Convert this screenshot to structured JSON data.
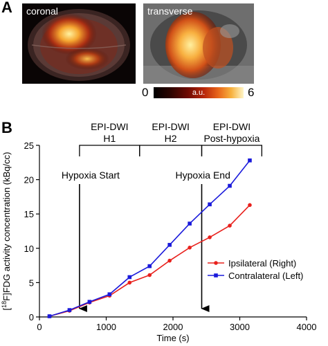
{
  "panel_a": {
    "letter": "A",
    "coronal_label": "coronal",
    "transverse_label": "transverse",
    "colorbar": {
      "min": "0",
      "max": "6",
      "unit": "a.u."
    }
  },
  "panel_b": {
    "letter": "B"
  },
  "chart_data": {
    "type": "line",
    "xlabel": "Time (s)",
    "ylabel_prefix": "[",
    "ylabel_superscript": "18",
    "ylabel_rest": "F]FDG activity concentration (kBq/cc)",
    "xlim": [
      0,
      4000
    ],
    "ylim": [
      0,
      25
    ],
    "xticks": [
      0,
      1000,
      2000,
      3000,
      4000
    ],
    "yticks": [
      0,
      5,
      10,
      15,
      20,
      25
    ],
    "series": [
      {
        "name": "Ipsilateral (Right)",
        "color": "#e8201c",
        "marker": "circle",
        "x": [
          150,
          450,
          750,
          1050,
          1350,
          1650,
          1950,
          2250,
          2550,
          2850,
          3150
        ],
        "y": [
          0.1,
          0.9,
          2.1,
          3.1,
          5.0,
          6.1,
          8.2,
          10.1,
          11.6,
          13.3,
          16.3
        ]
      },
      {
        "name": "Contralateral (Left)",
        "color": "#1a1adb",
        "marker": "square",
        "x": [
          150,
          450,
          750,
          1050,
          1350,
          1650,
          1950,
          2250,
          2550,
          2850,
          3150
        ],
        "y": [
          0.1,
          1.0,
          2.2,
          3.3,
          5.8,
          7.4,
          10.5,
          13.6,
          16.4,
          19.1,
          22.8
        ]
      }
    ],
    "legend_position": "lower-right",
    "annotations": {
      "hypoxia_start": {
        "text": "Hypoxia Start",
        "x": 600
      },
      "hypoxia_end": {
        "text": "Hypoxia End",
        "x": 2430
      },
      "epochs": [
        {
          "line1": "EPI-DWI",
          "line2": "H1",
          "x_start": 600,
          "x_end": 1500
        },
        {
          "line1": "EPI-DWI",
          "line2": "H2",
          "x_start": 1500,
          "x_end": 2430
        },
        {
          "line1": "EPI-DWI",
          "line2": "Post-hypoxia",
          "x_start": 2430,
          "x_end": 3330
        }
      ]
    }
  }
}
